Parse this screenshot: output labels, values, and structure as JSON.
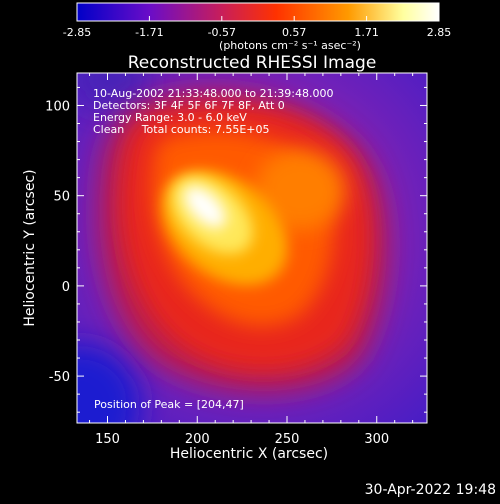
{
  "chart_data": {
    "type": "heatmap",
    "title": "Reconstructed RHESSI Image",
    "xlabel": "Heliocentric X (arcsec)",
    "ylabel": "Heliocentric Y (arcsec)",
    "xlim": [
      133,
      328
    ],
    "ylim": [
      -76,
      118
    ],
    "x_ticks": [
      150,
      200,
      250,
      300
    ],
    "y_ticks": [
      -50,
      0,
      50,
      100
    ],
    "x_tick_labels": [
      "150",
      "200",
      "250",
      "300"
    ],
    "y_tick_labels": [
      "-50",
      "0",
      "50",
      "100"
    ],
    "colorbar": {
      "min": -2.85,
      "max": 2.85,
      "ticks": [
        -2.85,
        -1.71,
        -0.57,
        0.57,
        1.71,
        2.85
      ],
      "tick_labels": [
        "-2.85",
        "-1.71",
        "-0.57",
        "0.57",
        "1.71",
        "2.85"
      ],
      "unit_label": "(photons cm⁻² s⁻¹ asec⁻²)",
      "colors": [
        "#0000c8",
        "#6a0dc8",
        "#c81e5a",
        "#ff3200",
        "#ff9a00",
        "#ffff9e",
        "#ffffff"
      ]
    },
    "annotations": [
      "10-Aug-2002 21:33:48.000 to 21:39:48.000",
      "Detectors: 3F 4F 5F 6F 7F 8F, Att 0",
      "Energy Range: 3.0 - 6.0 keV",
      "Clean     Total counts: 7.55E+05"
    ],
    "peak_label": "Position of Peak = [204,47]",
    "peak": [
      204,
      47
    ],
    "grid": false
  },
  "footer": {
    "date": "30-Apr-2022 19:48"
  }
}
